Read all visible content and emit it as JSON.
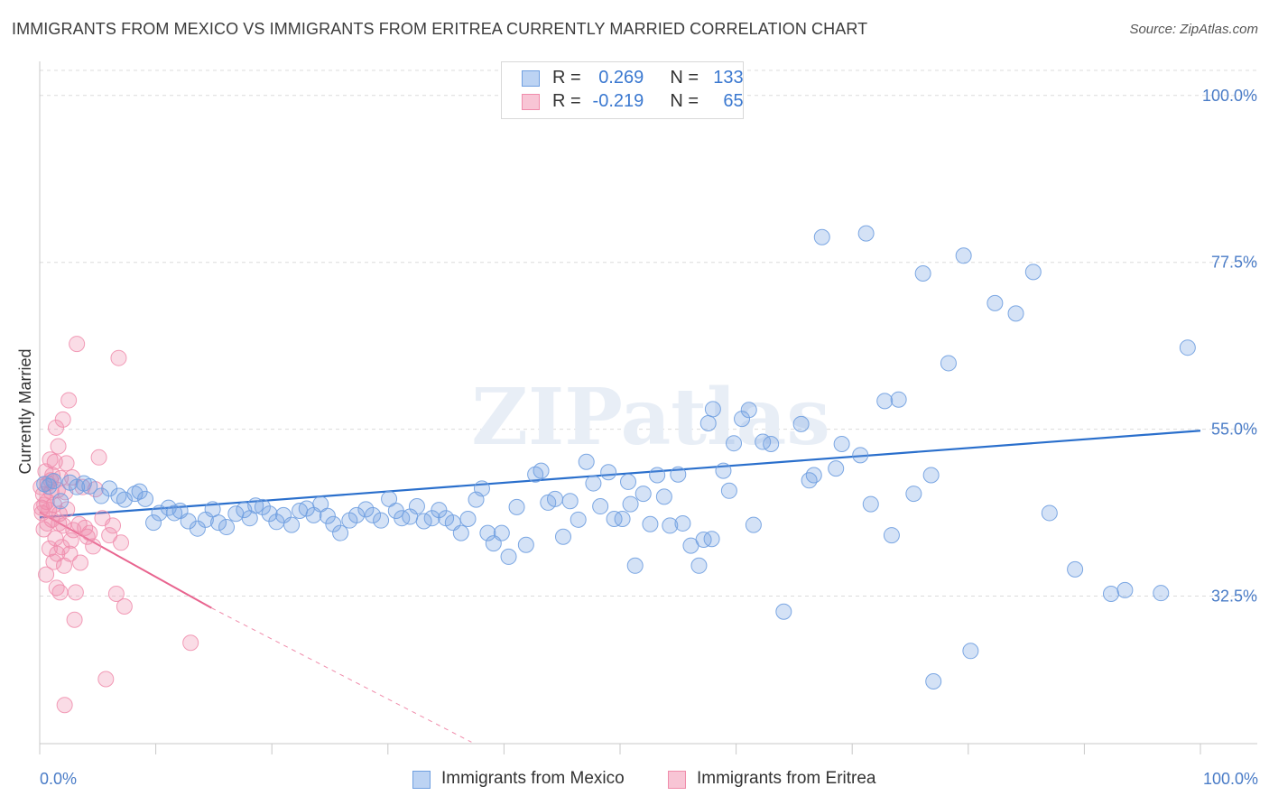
{
  "title": "IMMIGRANTS FROM MEXICO VS IMMIGRANTS FROM ERITREA CURRENTLY MARRIED CORRELATION CHART",
  "source": "Source: ZipAtlas.com",
  "watermark": "ZIPatlas",
  "legend": {
    "rows": [
      {
        "r_label": "R =",
        "r_value": "0.269",
        "n_label": "N =",
        "n_value": "133"
      },
      {
        "r_label": "R =",
        "r_value": "-0.219",
        "n_label": "N =",
        "n_value": "65"
      }
    ]
  },
  "bottom_legend": {
    "mexico": "Immigrants from Mexico",
    "eritrea": "Immigrants from Eritrea"
  },
  "x_axis": {
    "min_label": "0.0%",
    "max_label": "100.0%"
  },
  "chart_data": {
    "type": "scatter",
    "title": "IMMIGRANTS FROM MEXICO VS IMMIGRANTS FROM ERITREA CURRENTLY MARRIED CORRELATION CHART",
    "xlabel": "",
    "ylabel": "Currently Married",
    "xlim": [
      0,
      100
    ],
    "ylim": [
      12.6,
      104.6
    ],
    "y_ticks": [
      {
        "value": 32.5,
        "label": "32.5%"
      },
      {
        "value": 55.0,
        "label": "55.0%"
      },
      {
        "value": 77.5,
        "label": "77.5%"
      },
      {
        "value": 100.0,
        "label": "100.0%"
      }
    ],
    "grid": "horizontal dashed",
    "colors": {
      "mexico": "#6f9fe0",
      "mexico_line": "#2a6fcc",
      "eritrea": "#f08cab",
      "eritrea_line": "#e8648f"
    },
    "series": [
      {
        "name": "Immigrants from Mexico",
        "R": 0.269,
        "N": 133,
        "trend": {
          "x": [
            0,
            100
          ],
          "y": [
            43.1,
            54.8
          ]
        },
        "points": [
          [
            0.4,
            47.6
          ],
          [
            0.8,
            47.3
          ],
          [
            1.2,
            48.0
          ],
          [
            1.8,
            45.3
          ],
          [
            2.6,
            47.8
          ],
          [
            3.2,
            47.2
          ],
          [
            3.8,
            47.7
          ],
          [
            4.3,
            47.3
          ],
          [
            5.3,
            46.0
          ],
          [
            6.0,
            47.0
          ],
          [
            6.8,
            46.0
          ],
          [
            7.3,
            45.5
          ],
          [
            8.2,
            46.3
          ],
          [
            8.6,
            46.6
          ],
          [
            9.1,
            45.6
          ],
          [
            9.8,
            42.4
          ],
          [
            10.3,
            43.7
          ],
          [
            11.1,
            44.4
          ],
          [
            11.6,
            43.7
          ],
          [
            12.1,
            44.0
          ],
          [
            12.8,
            42.6
          ],
          [
            13.6,
            41.6
          ],
          [
            14.3,
            42.8
          ],
          [
            14.9,
            44.2
          ],
          [
            15.4,
            42.4
          ],
          [
            16.1,
            41.8
          ],
          [
            16.9,
            43.6
          ],
          [
            17.6,
            44.1
          ],
          [
            18.1,
            43.0
          ],
          [
            18.6,
            44.7
          ],
          [
            19.2,
            44.5
          ],
          [
            19.8,
            43.6
          ],
          [
            20.4,
            42.5
          ],
          [
            21.0,
            43.4
          ],
          [
            21.7,
            42.1
          ],
          [
            22.4,
            44.0
          ],
          [
            23.0,
            44.3
          ],
          [
            23.6,
            43.4
          ],
          [
            24.2,
            44.9
          ],
          [
            24.8,
            43.3
          ],
          [
            25.3,
            42.2
          ],
          [
            25.9,
            41.0
          ],
          [
            26.7,
            42.7
          ],
          [
            27.3,
            43.4
          ],
          [
            28.1,
            44.2
          ],
          [
            28.7,
            43.4
          ],
          [
            29.4,
            42.7
          ],
          [
            30.1,
            45.6
          ],
          [
            30.7,
            44.0
          ],
          [
            31.2,
            43.0
          ],
          [
            31.9,
            43.2
          ],
          [
            32.5,
            44.6
          ],
          [
            33.1,
            42.6
          ],
          [
            33.8,
            43.0
          ],
          [
            34.4,
            44.1
          ],
          [
            35.0,
            43.0
          ],
          [
            35.6,
            42.4
          ],
          [
            36.3,
            41.0
          ],
          [
            36.9,
            42.9
          ],
          [
            37.6,
            45.5
          ],
          [
            38.1,
            47.0
          ],
          [
            38.6,
            41.0
          ],
          [
            39.1,
            39.6
          ],
          [
            39.8,
            41.0
          ],
          [
            40.4,
            37.8
          ],
          [
            41.1,
            44.5
          ],
          [
            41.9,
            39.4
          ],
          [
            42.7,
            48.9
          ],
          [
            43.2,
            49.4
          ],
          [
            43.8,
            45.1
          ],
          [
            44.4,
            45.6
          ],
          [
            45.1,
            40.5
          ],
          [
            45.7,
            45.3
          ],
          [
            46.4,
            42.8
          ],
          [
            47.1,
            50.6
          ],
          [
            47.7,
            47.7
          ],
          [
            48.3,
            44.6
          ],
          [
            49.0,
            49.2
          ],
          [
            49.5,
            42.9
          ],
          [
            50.2,
            42.9
          ],
          [
            50.7,
            47.9
          ],
          [
            51.3,
            36.6
          ],
          [
            52.0,
            46.3
          ],
          [
            52.6,
            42.2
          ],
          [
            53.2,
            48.8
          ],
          [
            53.8,
            45.9
          ],
          [
            54.3,
            42.0
          ],
          [
            55.0,
            48.9
          ],
          [
            55.4,
            42.3
          ],
          [
            56.1,
            39.3
          ],
          [
            56.8,
            36.6
          ],
          [
            57.2,
            40.1
          ],
          [
            57.6,
            55.8
          ],
          [
            58.0,
            57.7
          ],
          [
            58.9,
            49.4
          ],
          [
            59.4,
            46.7
          ],
          [
            59.8,
            53.1
          ],
          [
            60.5,
            56.4
          ],
          [
            61.1,
            57.6
          ],
          [
            62.3,
            53.3
          ],
          [
            63.0,
            53.0
          ],
          [
            64.1,
            30.4
          ],
          [
            65.6,
            55.7
          ],
          [
            66.3,
            48.1
          ],
          [
            66.7,
            48.8
          ],
          [
            67.4,
            80.9
          ],
          [
            68.6,
            49.7
          ],
          [
            69.1,
            53.0
          ],
          [
            70.7,
            51.5
          ],
          [
            71.2,
            81.4
          ],
          [
            71.6,
            44.9
          ],
          [
            72.8,
            58.8
          ],
          [
            73.4,
            40.7
          ],
          [
            74.0,
            59.0
          ],
          [
            75.3,
            46.3
          ],
          [
            76.1,
            76.0
          ],
          [
            76.8,
            48.8
          ],
          [
            78.3,
            63.9
          ],
          [
            79.6,
            78.4
          ],
          [
            80.2,
            25.1
          ],
          [
            82.3,
            72.0
          ],
          [
            84.1,
            70.6
          ],
          [
            85.6,
            76.2
          ],
          [
            87.0,
            43.7
          ],
          [
            89.2,
            36.1
          ],
          [
            92.3,
            32.8
          ],
          [
            93.5,
            33.3
          ],
          [
            96.6,
            32.9
          ],
          [
            98.9,
            66.0
          ],
          [
            77.0,
            21.0
          ],
          [
            57.9,
            40.2
          ],
          [
            50.9,
            44.9
          ],
          [
            61.5,
            42.1
          ]
        ]
      },
      {
        "name": "Immigrants from Eritrea",
        "R": -0.219,
        "N": 65,
        "trend": {
          "x": [
            0,
            14.8
          ],
          "y": [
            43.8,
            30.9
          ]
        },
        "trend_dashed": {
          "x": [
            14.8,
            37.2
          ],
          "y": [
            30.9,
            12.8
          ]
        },
        "points": [
          [
            0.1,
            47.2
          ],
          [
            0.15,
            44.4
          ],
          [
            0.2,
            43.7
          ],
          [
            0.3,
            46.2
          ],
          [
            0.35,
            41.5
          ],
          [
            0.4,
            44.8
          ],
          [
            0.5,
            49.3
          ],
          [
            0.6,
            45.2
          ],
          [
            0.65,
            42.3
          ],
          [
            0.7,
            47.7
          ],
          [
            0.8,
            44.1
          ],
          [
            0.85,
            38.9
          ],
          [
            0.9,
            50.9
          ],
          [
            1.0,
            46.5
          ],
          [
            1.05,
            42.8
          ],
          [
            1.1,
            48.8
          ],
          [
            1.2,
            37.1
          ],
          [
            1.25,
            44.8
          ],
          [
            1.3,
            50.6
          ],
          [
            1.35,
            40.3
          ],
          [
            1.4,
            55.2
          ],
          [
            1.5,
            38.2
          ],
          [
            1.55,
            46.8
          ],
          [
            1.6,
            52.7
          ],
          [
            1.7,
            43.6
          ],
          [
            1.75,
            33.0
          ],
          [
            1.8,
            48.4
          ],
          [
            1.9,
            39.1
          ],
          [
            2.0,
            56.3
          ],
          [
            2.05,
            42.0
          ],
          [
            2.1,
            36.6
          ],
          [
            2.2,
            46.5
          ],
          [
            2.3,
            50.4
          ],
          [
            2.35,
            44.2
          ],
          [
            2.5,
            58.9
          ],
          [
            2.6,
            38.2
          ],
          [
            2.7,
            40.0
          ],
          [
            2.8,
            48.5
          ],
          [
            2.9,
            41.4
          ],
          [
            3.0,
            29.3
          ],
          [
            3.1,
            33.0
          ],
          [
            3.2,
            66.5
          ],
          [
            3.4,
            42.2
          ],
          [
            3.5,
            37.0
          ],
          [
            3.7,
            47.2
          ],
          [
            3.9,
            41.7
          ],
          [
            4.1,
            40.5
          ],
          [
            4.3,
            41.0
          ],
          [
            4.6,
            39.2
          ],
          [
            4.8,
            46.9
          ],
          [
            5.1,
            51.2
          ],
          [
            5.4,
            43.0
          ],
          [
            5.7,
            21.3
          ],
          [
            6.0,
            40.7
          ],
          [
            6.3,
            42.0
          ],
          [
            6.6,
            32.8
          ],
          [
            7.0,
            39.7
          ],
          [
            7.3,
            31.1
          ],
          [
            0.55,
            35.4
          ],
          [
            1.45,
            33.6
          ],
          [
            2.15,
            17.8
          ],
          [
            0.95,
            48.1
          ],
          [
            1.65,
            42.3
          ],
          [
            13.0,
            26.2
          ],
          [
            6.8,
            64.6
          ]
        ]
      }
    ]
  }
}
